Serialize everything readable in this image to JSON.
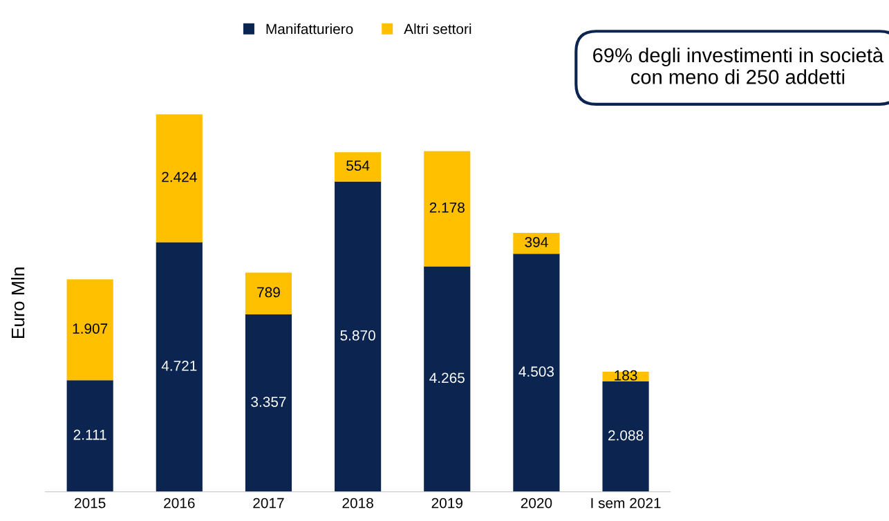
{
  "chart_data": {
    "type": "bar",
    "stacked": true,
    "ylabel": "Euro Mln",
    "categories": [
      "2015",
      "2016",
      "2017",
      "2018",
      "2019",
      "2020",
      "I sem 2021"
    ],
    "series": [
      {
        "name": "Manifatturiero",
        "color": "#0b2550",
        "values": [
          2111,
          4721,
          3357,
          5870,
          4265,
          4503,
          2088
        ],
        "value_labels": [
          "2.111",
          "4.721",
          "3.357",
          "5.870",
          "4.265",
          "4.503",
          "2.088"
        ]
      },
      {
        "name": "Altri settori",
        "color": "#ffc000",
        "values": [
          1907,
          2424,
          789,
          554,
          2178,
          394,
          183
        ],
        "value_labels": [
          "1.907",
          "2.424",
          "789",
          "554",
          "2.178",
          "394",
          "183"
        ]
      }
    ],
    "legend": "top",
    "grid": false,
    "annotations": [
      "69% degli investimenti in società con meno di 250 addetti"
    ]
  }
}
